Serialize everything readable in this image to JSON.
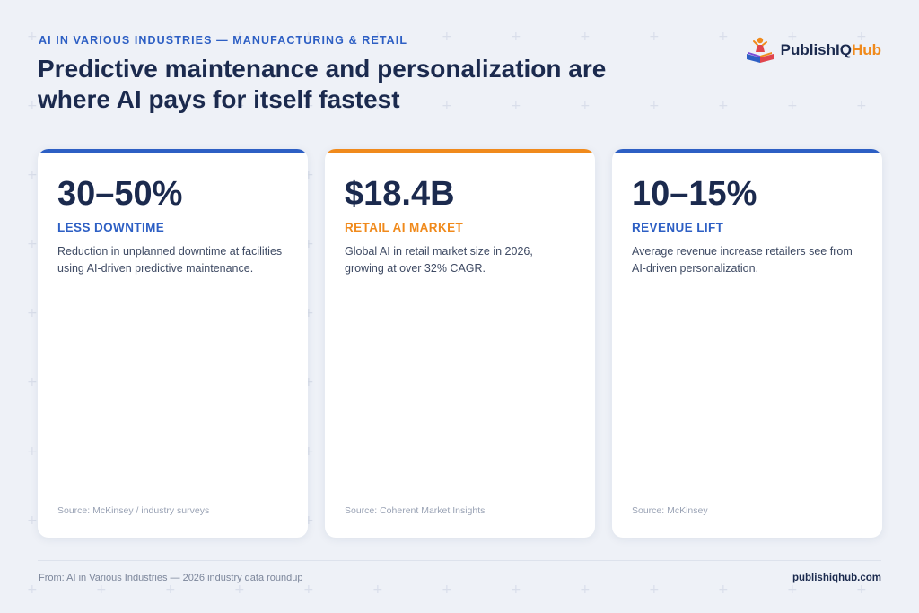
{
  "header": {
    "eyebrow": "AI IN VARIOUS INDUSTRIES — MANUFACTURING & RETAIL",
    "headline": "Predictive maintenance and personalization are where AI pays for itself fastest"
  },
  "logo": {
    "icon": "book-with-figure-logo-icon",
    "name_main": "PublishIQ",
    "name_accent": "Hub",
    "accent_color": "#f08a1c"
  },
  "cards": [
    {
      "stat": "30–50%",
      "label": "LESS DOWNTIME",
      "description": "Reduction in unplanned downtime at facilities using AI-driven predictive maintenance.",
      "source": "Source: McKinsey / industry surveys",
      "accent_color": "#2d5fc4",
      "label_color": "#2d5fc4"
    },
    {
      "stat": "$18.4B",
      "label": "RETAIL AI MARKET",
      "description": "Global AI in retail market size in 2026, growing at over 32% CAGR.",
      "source": "Source: Coherent Market Insights",
      "accent_color": "#f08a1c",
      "label_color": "#f08a1c"
    },
    {
      "stat": "10–15%",
      "label": "REVENUE LIFT",
      "description": "Average revenue increase retailers see from AI-driven personalization.",
      "source": "Source: McKinsey",
      "accent_color": "#2d5fc4",
      "label_color": "#2d5fc4"
    }
  ],
  "footer": {
    "left": "From: AI in Various Industries — 2026 industry data roundup",
    "right": "publishiqhub.com"
  },
  "colors": {
    "navy": "#1b2a4e",
    "blue": "#2d5fc4",
    "orange": "#f08a1c",
    "background": "#eef1f7"
  }
}
